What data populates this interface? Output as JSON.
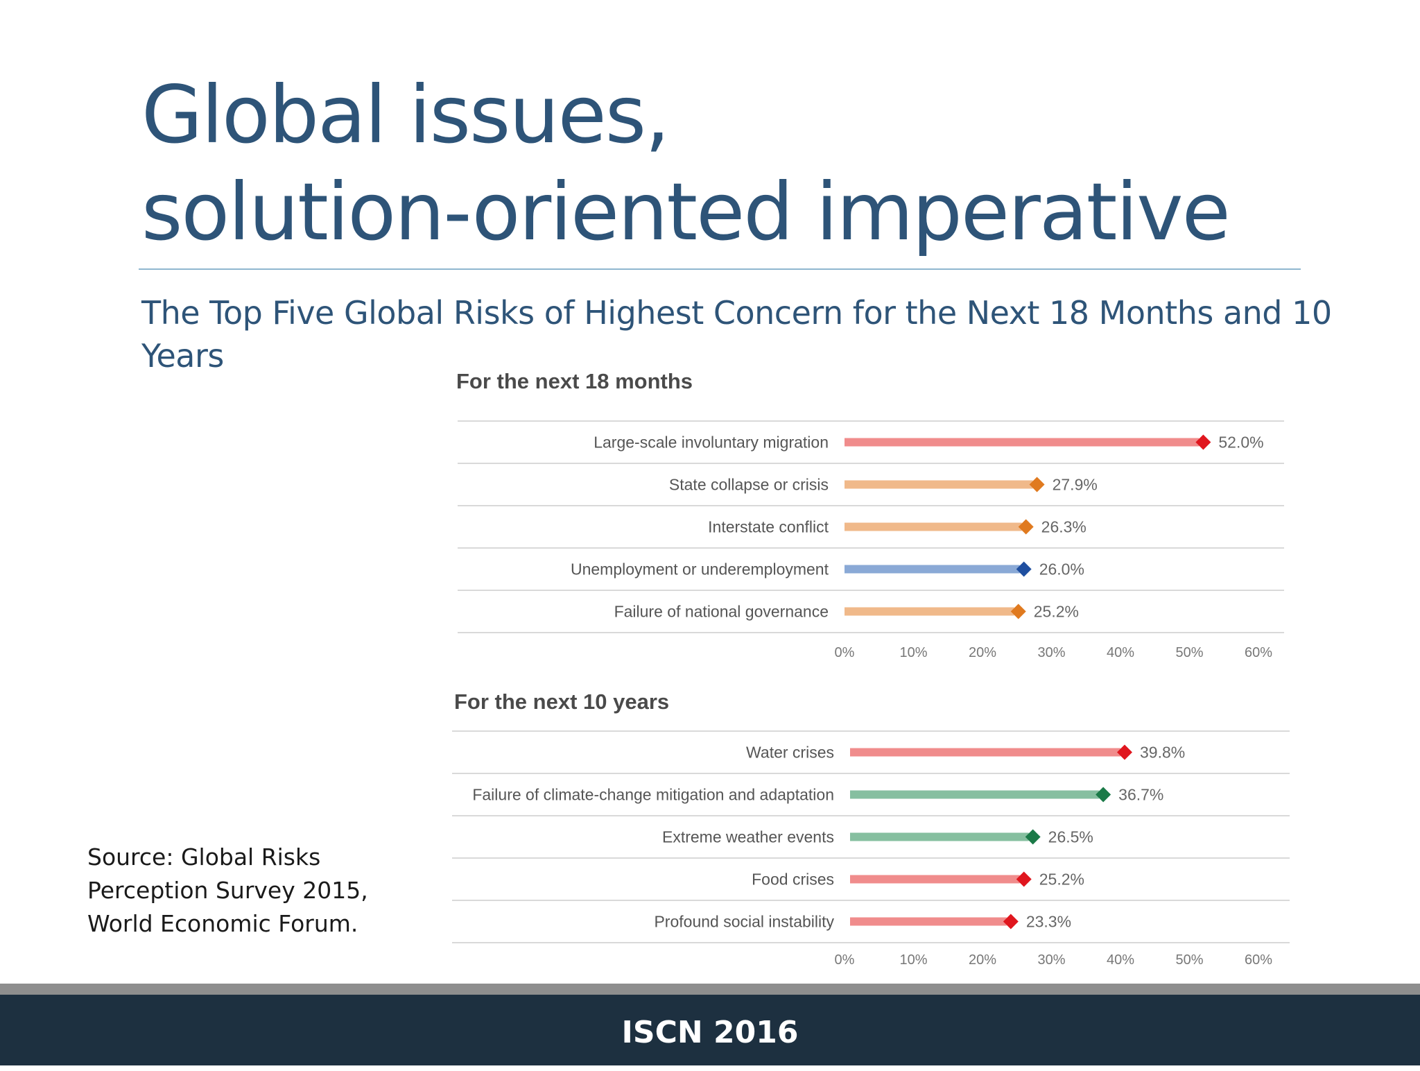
{
  "slide": {
    "title_line1": "Global issues,",
    "title_line2": "solution-oriented imperative",
    "subtitle": "The Top Five Global Risks of Highest Concern for the Next 18 Months and 10 Years",
    "source": "Source: Global Risks Perception Survey 2015, World Economic Forum.",
    "footer": "ISCN 2016"
  },
  "colors": {
    "title": "#2e5478",
    "societal": "#e0161e",
    "geopolitical": "#e07a1f",
    "economic": "#1f4fa0",
    "environmental": "#1b7a48",
    "footer_bg": "#1d3040"
  },
  "chart_data": [
    {
      "type": "bar",
      "title": "For the next 18 months",
      "categories": [
        "Large-scale involuntary migration",
        "State collapse or crisis",
        "Interstate conflict",
        "Unemployment or underemployment",
        "Failure of national governance"
      ],
      "values": [
        52.0,
        27.9,
        26.3,
        26.0,
        25.2
      ],
      "value_labels": [
        "52.0%",
        "27.9%",
        "26.3%",
        "26.0%",
        "25.2%"
      ],
      "marker_colors": [
        "#e0161e",
        "#e07a1f",
        "#e07a1f",
        "#1f4fa0",
        "#e07a1f"
      ],
      "bar_colors": [
        "#f08c8c",
        "#f0b98a",
        "#f0b98a",
        "#8aa9d6",
        "#f0b98a"
      ],
      "orientation": "horizontal",
      "xlim": [
        0,
        60
      ],
      "xticks": [
        "0%",
        "10%",
        "20%",
        "30%",
        "40%",
        "50%",
        "60%"
      ],
      "xlabel": "",
      "ylabel": "",
      "grid": true
    },
    {
      "type": "bar",
      "title": "For the next 10 years",
      "categories": [
        "Water crises",
        "Failure of climate-change mitigation and adaptation",
        "Extreme weather events",
        "Food crises",
        "Profound social instability"
      ],
      "values": [
        39.8,
        36.7,
        26.5,
        25.2,
        23.3
      ],
      "value_labels": [
        "39.8%",
        "36.7%",
        "26.5%",
        "25.2%",
        "23.3%"
      ],
      "marker_colors": [
        "#e0161e",
        "#1b7a48",
        "#1b7a48",
        "#e0161e",
        "#e0161e"
      ],
      "bar_colors": [
        "#f08c8c",
        "#86bfa0",
        "#86bfa0",
        "#f08c8c",
        "#f08c8c"
      ],
      "orientation": "horizontal",
      "xlim": [
        0,
        60
      ],
      "xticks": [
        "0%",
        "10%",
        "20%",
        "30%",
        "40%",
        "50%",
        "60%"
      ],
      "xlabel": "",
      "ylabel": "",
      "grid": true
    }
  ]
}
